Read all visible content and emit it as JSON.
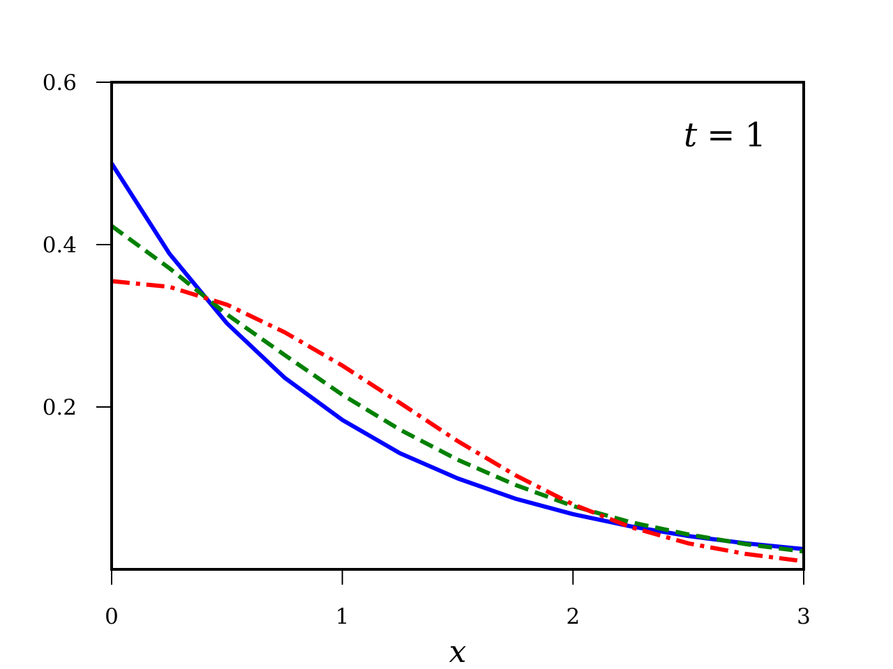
{
  "chart_data": {
    "type": "line",
    "title": "",
    "xlabel": "x",
    "ylabel": "",
    "xlim": [
      0,
      3
    ],
    "ylim": [
      0,
      0.6
    ],
    "xticks": [
      "0",
      "1",
      "2",
      "3"
    ],
    "yticks": [
      "0.2",
      "0.4",
      "0.6"
    ],
    "grid": false,
    "legend": "none",
    "annotation": {
      "var": "t",
      "op": "=",
      "value": "1"
    },
    "x": [
      0,
      0.25,
      0.5,
      0.75,
      1.0,
      1.25,
      1.5,
      1.75,
      2.0,
      2.25,
      2.5,
      2.75,
      3.0
    ],
    "series": [
      {
        "color": "#0000ff",
        "style": "solid",
        "values": [
          0.5,
          0.389,
          0.303,
          0.236,
          0.184,
          0.143,
          0.112,
          0.087,
          0.068,
          0.053,
          0.041,
          0.032,
          0.025
        ]
      },
      {
        "color": "#008000",
        "style": "dashed",
        "values": [
          0.423,
          0.371,
          0.314,
          0.264,
          0.215,
          0.172,
          0.135,
          0.104,
          0.078,
          0.058,
          0.043,
          0.031,
          0.022
        ]
      },
      {
        "color": "#ff0000",
        "style": "dashdot",
        "values": [
          0.355,
          0.348,
          0.326,
          0.292,
          0.251,
          0.205,
          0.158,
          0.116,
          0.08,
          0.052,
          0.032,
          0.019,
          0.01
        ]
      }
    ]
  }
}
